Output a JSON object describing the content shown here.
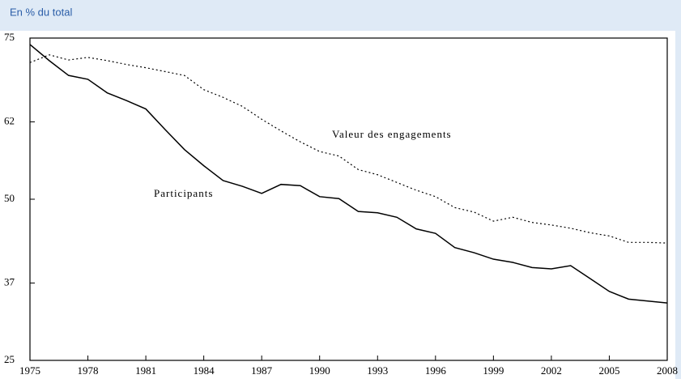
{
  "chart_data": {
    "type": "line",
    "title": "En % du total",
    "x": [
      1975,
      1976,
      1977,
      1978,
      1979,
      1980,
      1981,
      1982,
      1983,
      1984,
      1985,
      1986,
      1987,
      1988,
      1989,
      1990,
      1991,
      1992,
      1993,
      1994,
      1995,
      1996,
      1997,
      1998,
      1999,
      2000,
      2001,
      2002,
      2003,
      2004,
      2005,
      2006,
      2007,
      2008
    ],
    "series": [
      {
        "name": "Participants",
        "color": "#000000",
        "style": "solid",
        "values": [
          74,
          71.5,
          69.2,
          68.6,
          66.5,
          65.3,
          64,
          60.8,
          57.7,
          55.2,
          52.9,
          52,
          50.9,
          52.3,
          52.1,
          50.4,
          50.1,
          48.1,
          47.9,
          47.2,
          45.4,
          44.7,
          42.5,
          41.7,
          40.7,
          40.2,
          39.4,
          39.2,
          39.7,
          37.7,
          35.7,
          34.5,
          34.2,
          33.9
        ]
      },
      {
        "name": "Valeur des engagements",
        "color": "#000000",
        "style": "dotted",
        "values": [
          71.2,
          72.4,
          71.6,
          72,
          71.5,
          70.9,
          70.4,
          69.8,
          69.2,
          67,
          65.8,
          64.4,
          62.4,
          60.6,
          58.9,
          57.4,
          56.7,
          54.6,
          53.8,
          52.6,
          51.4,
          50.4,
          48.7,
          48,
          46.6,
          47.2,
          46.4,
          46,
          45.5,
          44.8,
          44.3,
          43.3,
          43.3,
          43.2
        ]
      }
    ],
    "xlim": [
      1975,
      2008
    ],
    "xticks": [
      1975,
      1978,
      1981,
      1984,
      1987,
      1990,
      1993,
      1996,
      1999,
      2002,
      2005,
      2008
    ],
    "ylim": [
      25,
      75
    ],
    "yticks": [
      25,
      37,
      50,
      62,
      75
    ],
    "grid": false
  }
}
